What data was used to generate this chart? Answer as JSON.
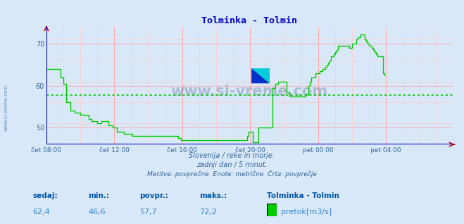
{
  "title": "Tolminka - Tolmin",
  "title_color": "#0000cc",
  "bg_color": "#d8e8f8",
  "plot_bg_color": "#d8e8f8",
  "line_color": "#00cc00",
  "avg_line_color": "#00cc00",
  "avg_value": 57.7,
  "x_min": 0,
  "x_max": 287,
  "y_min": 46,
  "y_max": 74,
  "yticks": [
    50,
    60,
    70
  ],
  "grid_color_major": "#ffaaaa",
  "grid_color_minor": "#ffcccc",
  "axis_color": "#0000cc",
  "tick_color": "#336699",
  "watermark_text": "www.si-vreme.com",
  "watermark_color": "#1a3a6a",
  "watermark_alpha": 0.25,
  "subtitle1": "Slovenija / reke in morje.",
  "subtitle2": "zadnji dan / 5 minut.",
  "subtitle3": "Meritve: povprečne  Enote: metrične  Črta: povprečje",
  "subtitle_color": "#336699",
  "label_sedaj": "sedaj:",
  "label_min": "min.:",
  "label_povpr": "povpr.:",
  "label_maks": "maks.:",
  "val_sedaj": "62,4",
  "val_min": "46,6",
  "val_povpr": "57,7",
  "val_maks": "72,2",
  "legend_station": "Tolminka - Tolmin",
  "legend_label": "pretok[m3/s]",
  "legend_color": "#00cc00",
  "label_color": "#0055aa",
  "value_color": "#3388cc",
  "xtick_labels": [
    "čet 08:00",
    "čet 12:00",
    "čet 16:00",
    "čet 20:00",
    "pet 00:00",
    "pet 04:00"
  ],
  "xtick_positions": [
    0,
    48,
    96,
    144,
    192,
    240
  ],
  "data_y": [
    64.0,
    64.0,
    64.0,
    64.0,
    64.0,
    64.0,
    64.0,
    64.0,
    64.0,
    64.0,
    62.0,
    62.0,
    60.5,
    60.5,
    56.0,
    56.0,
    56.0,
    54.0,
    54.0,
    54.0,
    53.5,
    53.5,
    53.5,
    53.5,
    53.0,
    53.0,
    53.0,
    53.0,
    53.0,
    53.0,
    52.0,
    52.0,
    51.5,
    51.5,
    51.5,
    51.5,
    51.0,
    51.0,
    51.0,
    51.5,
    51.5,
    51.5,
    51.5,
    51.5,
    50.5,
    50.5,
    50.5,
    50.0,
    50.0,
    50.0,
    49.0,
    49.0,
    49.0,
    49.0,
    49.0,
    48.5,
    48.5,
    48.5,
    48.5,
    48.5,
    48.5,
    48.0,
    48.0,
    48.0,
    48.0,
    48.0,
    48.0,
    48.0,
    48.0,
    48.0,
    48.0,
    48.0,
    48.0,
    48.0,
    48.0,
    48.0,
    48.0,
    48.0,
    48.0,
    48.0,
    48.0,
    48.0,
    48.0,
    48.0,
    48.0,
    48.0,
    48.0,
    48.0,
    48.0,
    48.0,
    48.0,
    48.0,
    48.0,
    47.5,
    47.5,
    47.0,
    47.0,
    47.0,
    47.0,
    47.0,
    47.0,
    47.0,
    47.0,
    47.0,
    47.0,
    47.0,
    47.0,
    47.0,
    47.0,
    47.0,
    47.0,
    47.0,
    47.0,
    47.0,
    47.0,
    47.0,
    47.0,
    47.0,
    47.0,
    47.0,
    47.0,
    47.0,
    47.0,
    47.0,
    47.0,
    47.0,
    47.0,
    47.0,
    47.0,
    47.0,
    47.0,
    47.0,
    47.0,
    47.0,
    47.0,
    47.0,
    47.0,
    47.0,
    47.0,
    47.0,
    47.0,
    47.0,
    48.0,
    49.0,
    49.0,
    49.0,
    46.6,
    46.6,
    46.6,
    46.6,
    50.0,
    50.0,
    50.0,
    50.0,
    50.0,
    50.0,
    50.0,
    50.0,
    50.0,
    50.0,
    59.5,
    59.5,
    60.5,
    60.5,
    61.0,
    61.0,
    61.0,
    61.0,
    61.0,
    61.0,
    58.5,
    58.5,
    57.5,
    57.5,
    57.5,
    57.5,
    57.5,
    57.5,
    57.5,
    57.5,
    57.5,
    57.5,
    57.5,
    58.0,
    58.0,
    60.0,
    61.0,
    62.0,
    62.0,
    62.0,
    63.0,
    63.0,
    63.0,
    63.5,
    63.5,
    64.0,
    64.0,
    64.5,
    65.0,
    65.5,
    66.0,
    67.0,
    67.0,
    67.5,
    68.0,
    68.5,
    69.5,
    69.5,
    69.5,
    69.5,
    69.5,
    69.5,
    69.5,
    69.5,
    69.0,
    69.0,
    70.0,
    70.0,
    70.0,
    71.0,
    71.5,
    71.5,
    72.2,
    72.2,
    72.2,
    71.0,
    70.5,
    70.0,
    69.5,
    69.5,
    69.0,
    68.5,
    68.0,
    67.5,
    67.0,
    67.0,
    67.0,
    67.0,
    63.0,
    62.4
  ]
}
